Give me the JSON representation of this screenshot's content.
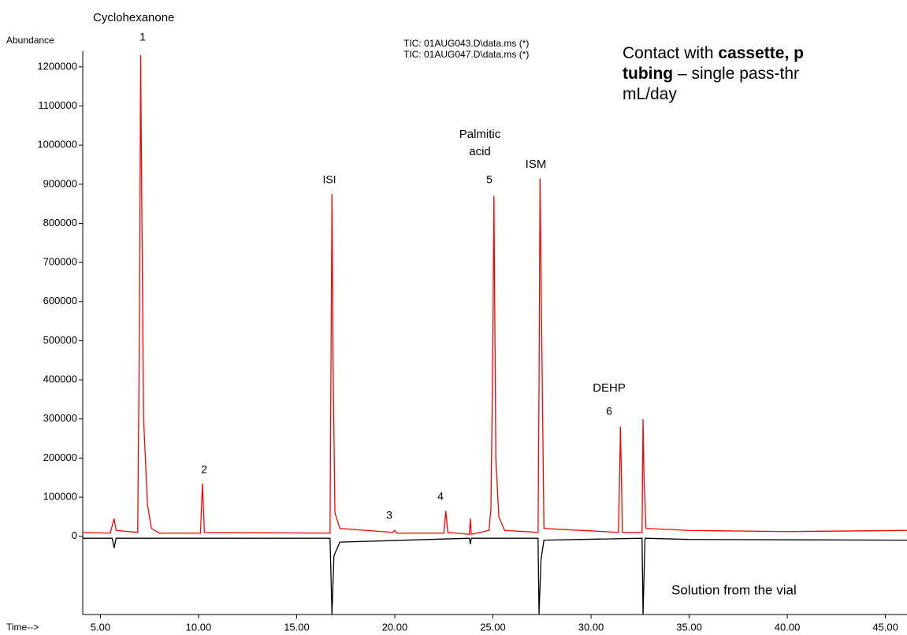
{
  "chart_data": {
    "type": "line",
    "y_label": "Abundance",
    "x_label": "Time-->",
    "xlim": [
      4.1,
      46.1
    ],
    "ylim": [
      -200000,
      1240000
    ],
    "xticks": [
      {
        "value": 5,
        "label": "5.00"
      },
      {
        "value": 10,
        "label": "10.00"
      },
      {
        "value": 15,
        "label": "15.00"
      },
      {
        "value": 20,
        "label": "20.00"
      },
      {
        "value": 25,
        "label": "25.00"
      },
      {
        "value": 30,
        "label": "30.00"
      },
      {
        "value": 35,
        "label": "35.00"
      },
      {
        "value": 40,
        "label": "40.00"
      },
      {
        "value": 45,
        "label": "45.00"
      }
    ],
    "yticks": [
      0,
      100000,
      200000,
      300000,
      400000,
      500000,
      600000,
      700000,
      800000,
      900000,
      1000000,
      1100000,
      1200000
    ],
    "series": [
      {
        "name": "TIC: 01AUG043.D\\data.ms (*)",
        "color": "#000000",
        "x": [
          4.1,
          5.6,
          5.7,
          5.8,
          16.7,
          16.8,
          16.9,
          17.2,
          23.8,
          23.85,
          23.9,
          27.3,
          27.35,
          27.45,
          27.6,
          32.6,
          32.65,
          32.75,
          35,
          46.1
        ],
        "values": [
          -5000,
          -5000,
          -30000,
          -5000,
          -5000,
          -200000,
          -50000,
          -15000,
          -5000,
          -20000,
          -5000,
          -5000,
          -200000,
          -60000,
          -10000,
          -5000,
          -200000,
          -5000,
          -8000,
          -10000
        ]
      },
      {
        "name": "TIC: 01AUG047.D\\data.ms (*)",
        "color": "#ff0000",
        "x": [
          4.1,
          5.5,
          5.7,
          5.8,
          6.9,
          7.0,
          7.05,
          7.1,
          7.2,
          7.4,
          7.6,
          8.0,
          10.1,
          10.2,
          10.3,
          16.7,
          16.8,
          16.85,
          16.95,
          17.2,
          19.9,
          20.0,
          20.1,
          22.5,
          22.6,
          22.7,
          23.8,
          23.85,
          23.9,
          24.8,
          24.9,
          25.0,
          25.05,
          25.15,
          25.3,
          25.6,
          27.3,
          27.35,
          27.4,
          27.5,
          27.6,
          31.4,
          31.45,
          31.5,
          31.6,
          32.6,
          32.65,
          32.7,
          32.8,
          35,
          40,
          46.1
        ],
        "values": [
          10000,
          8000,
          45000,
          15000,
          10000,
          600000,
          1230000,
          900000,
          300000,
          80000,
          20000,
          8000,
          8000,
          135000,
          10000,
          8000,
          875000,
          470000,
          60000,
          20000,
          10000,
          15000,
          8000,
          8000,
          65000,
          10000,
          5000,
          45000,
          5000,
          15000,
          70000,
          500000,
          870000,
          200000,
          50000,
          15000,
          10000,
          380000,
          915000,
          460000,
          20000,
          10000,
          140000,
          280000,
          10000,
          10000,
          300000,
          150000,
          20000,
          15000,
          12000,
          15000
        ]
      }
    ],
    "annotations": [
      "Cyclohexanone",
      "1",
      "2",
      "ISI",
      "3",
      "4",
      "Palmitic",
      "acid",
      "5",
      "ISM",
      "DEHP",
      "6",
      "Solution from the vial"
    ],
    "note": [
      "Contact with ",
      "cassette, p",
      "tubing",
      " – single pass-thr",
      "mL/day"
    ]
  }
}
